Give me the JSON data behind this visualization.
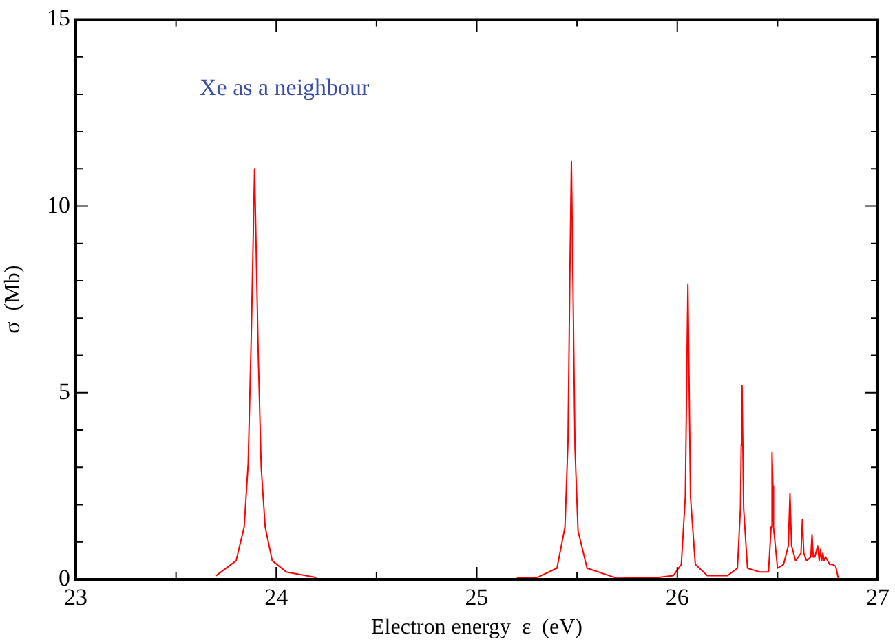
{
  "chart_data": {
    "type": "line",
    "xlabel": "Electron energy  ε  (eV)",
    "ylabel": "σ  (Mb)",
    "annotations": [
      "Xe as a neighbour"
    ],
    "xlim": [
      23,
      27
    ],
    "ylim": [
      0,
      15
    ],
    "xticks": [
      23,
      {
        "value": 23.5,
        "label": null
      },
      24,
      {
        "value": 24.5,
        "label": null
      },
      25,
      {
        "value": 25.5,
        "label": null
      },
      26,
      {
        "value": 26.5,
        "label": null
      },
      27
    ],
    "yticks": [
      0,
      {
        "value": 1,
        "label": null
      },
      {
        "value": 2,
        "label": null
      },
      {
        "value": 3,
        "label": null
      },
      {
        "value": 4,
        "label": null
      },
      5,
      {
        "value": 6,
        "label": null
      },
      {
        "value": 7,
        "label": null
      },
      {
        "value": 8,
        "label": null
      },
      {
        "value": 9,
        "label": null
      },
      10,
      {
        "value": 11,
        "label": null
      },
      {
        "value": 12,
        "label": null
      },
      {
        "value": 13,
        "label": null
      },
      {
        "value": 14,
        "label": null
      },
      15
    ],
    "grid": false,
    "legend": false,
    "marker": "none",
    "line_style": "solid",
    "series": [
      {
        "color": "#ff0000",
        "x": [
          23.7,
          23.8,
          23.84,
          23.86,
          23.875,
          23.892,
          23.91,
          23.925,
          23.945,
          23.98,
          24.05,
          24.2,
          24.5,
          25.0,
          25.2,
          25.3,
          25.4,
          25.44,
          25.455,
          25.465,
          25.472,
          25.48,
          25.49,
          25.505,
          25.55,
          25.7,
          25.9,
          25.98,
          26.02,
          26.04,
          26.048,
          26.053,
          26.058,
          26.066,
          26.09,
          26.15,
          26.25,
          26.3,
          26.315,
          26.319,
          26.323,
          26.327,
          26.331,
          26.35,
          26.41,
          26.455,
          26.468,
          26.471,
          26.474,
          26.477,
          26.48,
          26.5,
          26.53,
          26.554,
          26.562,
          26.57,
          26.59,
          26.617,
          26.624,
          26.631,
          26.645,
          26.666,
          26.672,
          26.678,
          26.686,
          26.7,
          26.708,
          26.714,
          26.72,
          26.726,
          26.732,
          26.74,
          26.75,
          26.76,
          26.775,
          26.79,
          26.8,
          26.805
        ],
        "values": [
          0.1,
          0.5,
          1.4,
          3.1,
          6.4,
          11.0,
          6.1,
          3.0,
          1.4,
          0.5,
          0.2,
          0.05,
          null,
          null,
          0.05,
          0.05,
          0.3,
          1.4,
          3.7,
          8.4,
          11.2,
          7.8,
          3.5,
          1.3,
          0.3,
          0.03,
          0.05,
          0.1,
          0.4,
          2.2,
          5.7,
          7.9,
          5.7,
          2.2,
          0.4,
          0.1,
          0.1,
          0.3,
          1.9,
          3.6,
          5.2,
          3.6,
          1.9,
          0.3,
          0.2,
          0.2,
          1.4,
          2.5,
          3.4,
          2.5,
          1.4,
          0.3,
          0.4,
          0.9,
          2.3,
          0.9,
          0.5,
          0.7,
          1.6,
          0.7,
          0.5,
          0.6,
          1.2,
          0.6,
          0.6,
          0.9,
          0.5,
          0.8,
          0.5,
          0.7,
          0.5,
          0.6,
          0.5,
          0.4,
          0.4,
          0.35,
          0.1,
          0
        ]
      }
    ]
  }
}
